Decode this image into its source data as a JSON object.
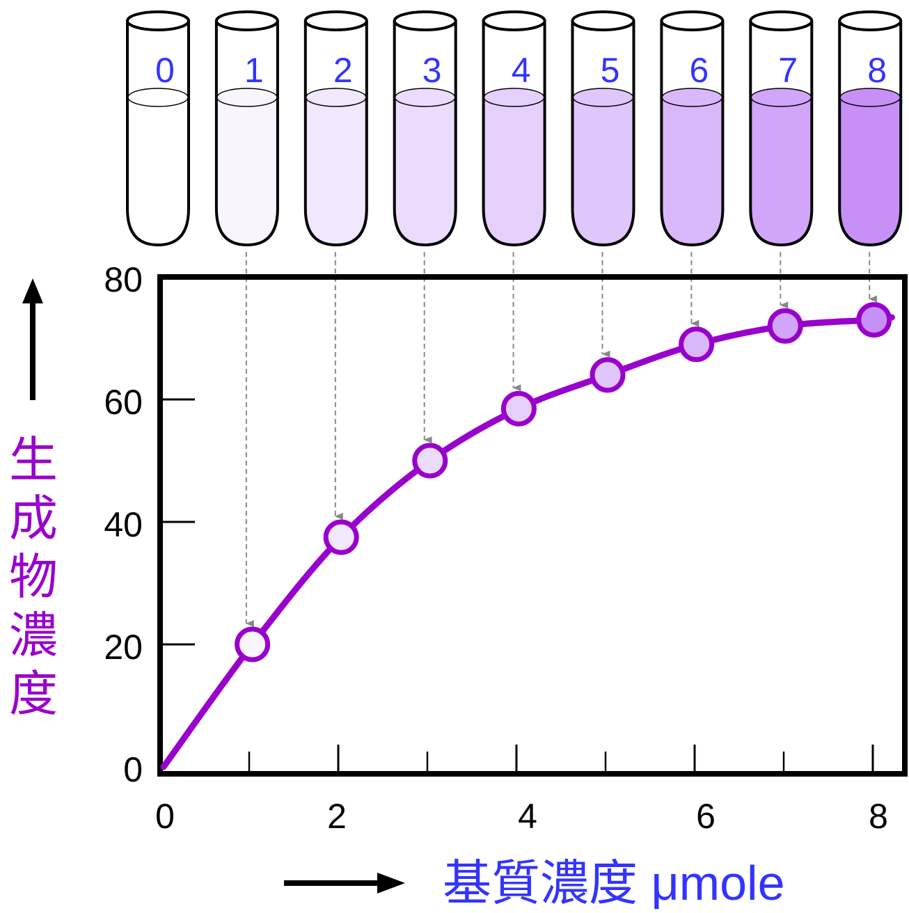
{
  "chart_data": {
    "type": "line",
    "xlabel": "基質濃度 μmole",
    "ylabel": "生成物濃度",
    "x_ticks": [
      "0",
      "2",
      "4",
      "6",
      "8"
    ],
    "y_ticks": [
      "0",
      "20",
      "40",
      "60",
      "80"
    ],
    "xlim": [
      0,
      8
    ],
    "ylim": [
      0,
      80
    ],
    "grid": false,
    "legend": "none",
    "series": [
      {
        "x": [
          0,
          1,
          2,
          3,
          4,
          5,
          6,
          7,
          8
        ],
        "y": [
          0,
          20,
          37.5,
          50,
          58.5,
          64,
          69,
          72,
          73
        ]
      }
    ],
    "tubes": {
      "labels": [
        "0",
        "1",
        "2",
        "3",
        "4",
        "5",
        "6",
        "7",
        "8"
      ],
      "fill_colors": [
        "#ffffff",
        "#f9f5fd",
        "#f1e8fd",
        "#ebdcfd",
        "#e5d0fb",
        "#dfc6fb",
        "#d9b8fa",
        "#d0a5fa",
        "#c690f7"
      ]
    },
    "colors": {
      "curve": "#9900cc",
      "ylabel": "#9900cc",
      "xlabel": "#3333ff",
      "tube_label": "#3333ff",
      "guide_arrow": "#888888",
      "axis": "#000000"
    }
  }
}
